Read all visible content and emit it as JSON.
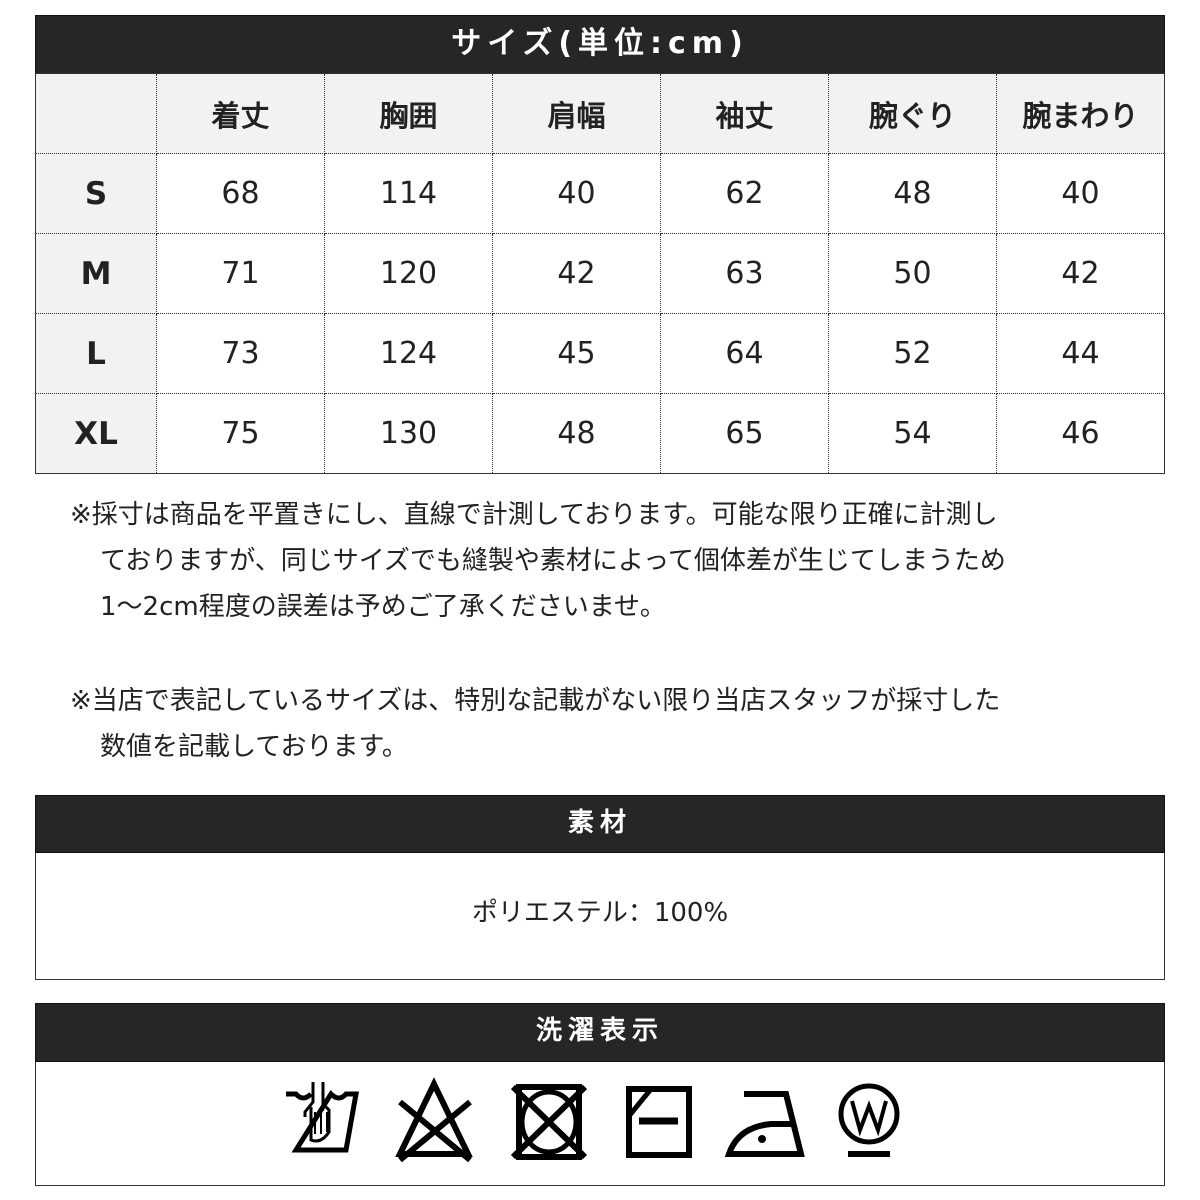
{
  "size_table": {
    "title": "サイズ(単位:cm)",
    "headers": [
      "",
      "着丈",
      "胸囲",
      "肩幅",
      "袖丈",
      "腕ぐり",
      "腕まわり"
    ],
    "rows": [
      [
        "S",
        "68",
        "114",
        "40",
        "62",
        "48",
        "40"
      ],
      [
        "M",
        "71",
        "120",
        "42",
        "63",
        "50",
        "42"
      ],
      [
        "L",
        "73",
        "124",
        "45",
        "64",
        "52",
        "44"
      ],
      [
        "XL",
        "75",
        "130",
        "48",
        "65",
        "54",
        "46"
      ]
    ]
  },
  "notes": [
    {
      "first": "※採寸は商品を平置きにし、直線で計測しております。可能な限り正確に計測し",
      "rest": [
        "ておりますが、同じサイズでも縫製や素材によって個体差が生じてしまうため",
        "1～2cm程度の誤差は予めご了承くださいませ。"
      ]
    },
    {
      "first": "※当店で表記しているサイズは、特別な記載がない限り当店スタッフが採寸した",
      "rest": [
        "数値を記載しております。"
      ]
    }
  ],
  "material": {
    "title": "素材",
    "value": "ポリエステル：100%"
  },
  "washing": {
    "title": "洗濯表示",
    "icons": [
      "hand-wash-icon",
      "no-bleach-icon",
      "no-tumble-dry-icon",
      "line-dry-shade-icon",
      "iron-low-icon",
      "wet-clean-icon"
    ]
  }
}
